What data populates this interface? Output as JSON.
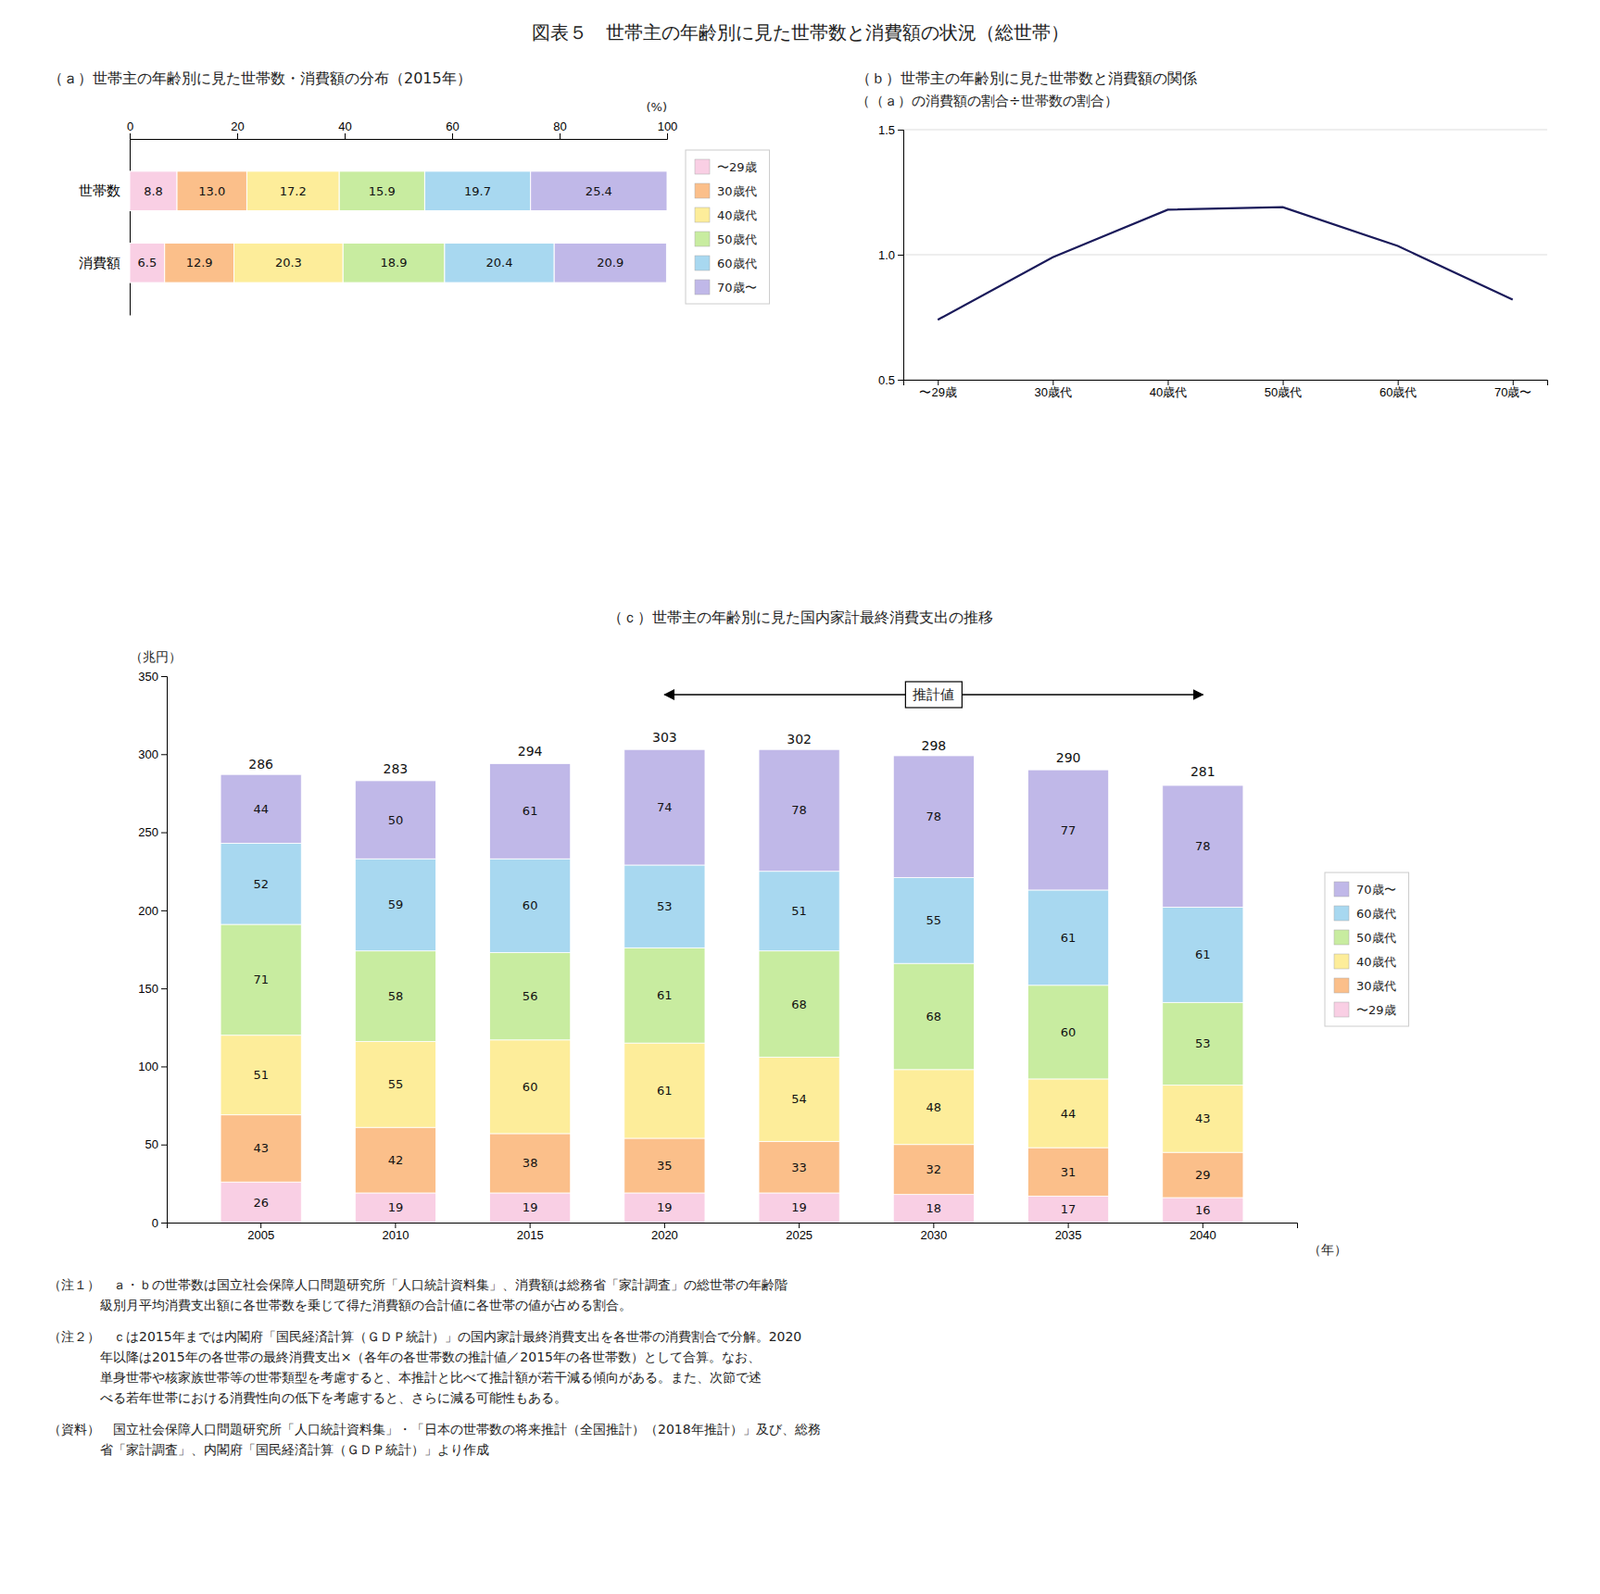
{
  "title": "図表５　世帯主の年齢別に見た世帯数と消費額の状況（総世帯）",
  "chart_data": [
    {
      "type": "bar",
      "orientation": "horizontal",
      "stacked": true,
      "data_labels": true,
      "legend": "right",
      "title": "（ａ）世帯主の年齢別に見た世帯数・消費額の分布（2015年）",
      "xlabel": "(%)",
      "categories": [
        "世帯数",
        "消費額"
      ],
      "series": [
        {
          "name": "〜29歳",
          "color": "#F9CFE4",
          "values": [
            8.8,
            6.5
          ]
        },
        {
          "name": "30歳代",
          "color": "#FBBF8A",
          "values": [
            13.0,
            12.9
          ],
          "value_labels": [
            "13.0",
            "12.9"
          ]
        },
        {
          "name": "40歳代",
          "color": "#FDED9A",
          "values": [
            17.2,
            20.3
          ]
        },
        {
          "name": "50歳代",
          "color": "#C8ECA0",
          "values": [
            15.9,
            18.9
          ]
        },
        {
          "name": "60歳代",
          "color": "#A8D8F0",
          "values": [
            19.7,
            20.4
          ]
        },
        {
          "name": "70歳〜",
          "color": "#C0B8E8",
          "values": [
            25.4,
            20.9
          ]
        }
      ],
      "xlim": [
        0,
        100
      ],
      "xticks": [
        0,
        20,
        40,
        60,
        80,
        100
      ]
    },
    {
      "type": "line",
      "title": "（ｂ）世帯主の年齢別に見た世帯数と消費額の関係",
      "subtitle": "（（ａ）の消費額の割合÷世帯数の割合）",
      "categories": [
        "〜29歳",
        "30歳代",
        "40歳代",
        "50歳代",
        "60歳代",
        "70歳〜"
      ],
      "values": [
        0.74,
        0.99,
        1.18,
        1.19,
        1.035,
        0.82
      ],
      "color": "#1a1a5a",
      "ylim": [
        0.5,
        1.5
      ],
      "yticks": [
        0.5,
        {
          "value": 1.0,
          "label": "1.0"
        },
        1.5
      ],
      "grid": true
    },
    {
      "type": "bar",
      "stacked": true,
      "data_labels": true,
      "legend": "right",
      "title": "（ｃ）世帯主の年齢別に見た国内家計最終消費支出の推移",
      "xlabel": "（年）",
      "ylabel": "（兆円）",
      "categories": [
        "2005",
        "2010",
        "2015",
        "2020",
        "2025",
        "2030",
        "2035",
        "2040"
      ],
      "series": [
        {
          "name": "〜29歳",
          "color": "#F9CFE4",
          "values": [
            26,
            19,
            19,
            19,
            19,
            18,
            17,
            16
          ]
        },
        {
          "name": "30歳代",
          "color": "#FBBF8A",
          "values": [
            43,
            42,
            38,
            35,
            33,
            32,
            31,
            29
          ]
        },
        {
          "name": "40歳代",
          "color": "#FDED9A",
          "values": [
            51,
            55,
            60,
            61,
            54,
            48,
            44,
            43
          ]
        },
        {
          "name": "50歳代",
          "color": "#C8ECA0",
          "values": [
            71,
            58,
            56,
            61,
            68,
            68,
            60,
            53
          ]
        },
        {
          "name": "60歳代",
          "color": "#A8D8F0",
          "values": [
            52,
            59,
            60,
            53,
            51,
            55,
            61,
            61
          ]
        },
        {
          "name": "70歳〜",
          "color": "#C0B8E8",
          "values": [
            44,
            50,
            61,
            74,
            78,
            78,
            77,
            78
          ]
        }
      ],
      "totals": [
        286,
        283,
        294,
        303,
        302,
        298,
        290,
        281
      ],
      "ylim": [
        0,
        350
      ],
      "yticks": [
        0,
        50,
        100,
        150,
        200,
        250,
        300,
        350
      ],
      "annotations": [
        {
          "text": "推計値",
          "from": "2020",
          "to": "2040"
        }
      ]
    }
  ],
  "notes": [
    "（注１）　ａ・ｂの世帯数は国立社会保障人口問題研究所「人口統計資料集」、消費額は総務省「家計調査」の総世帯の年齢階\n　　　　級別月平均消費支出額に各世帯数を乗じて得た消費額の合計値に各世帯の値が占める割合。",
    "（注２）　ｃは2015年までは内閣府「国民経済計算（ＧＤＰ統計）」の国内家計最終消費支出を各世帯の消費割合で分解。2020\n　　　　年以降は2015年の各世帯の最終消費支出×（各年の各世帯数の推計値／2015年の各世帯数）として合算。なお、\n　　　　単身世帯や核家族世帯等の世帯類型を考慮すると、本推計と比べて推計額が若干減る傾向がある。また、次節で述\n　　　　べる若年世帯における消費性向の低下を考慮すると、さらに減る可能性もある。",
    "（資料）　国立社会保障人口問題研究所「人口統計資料集」・「日本の世帯数の将来推計（全国推計）（2018年推計）」及び、総務\n　　　　省「家計調査」、内閣府「国民経済計算（ＧＤＰ統計）」より作成"
  ]
}
